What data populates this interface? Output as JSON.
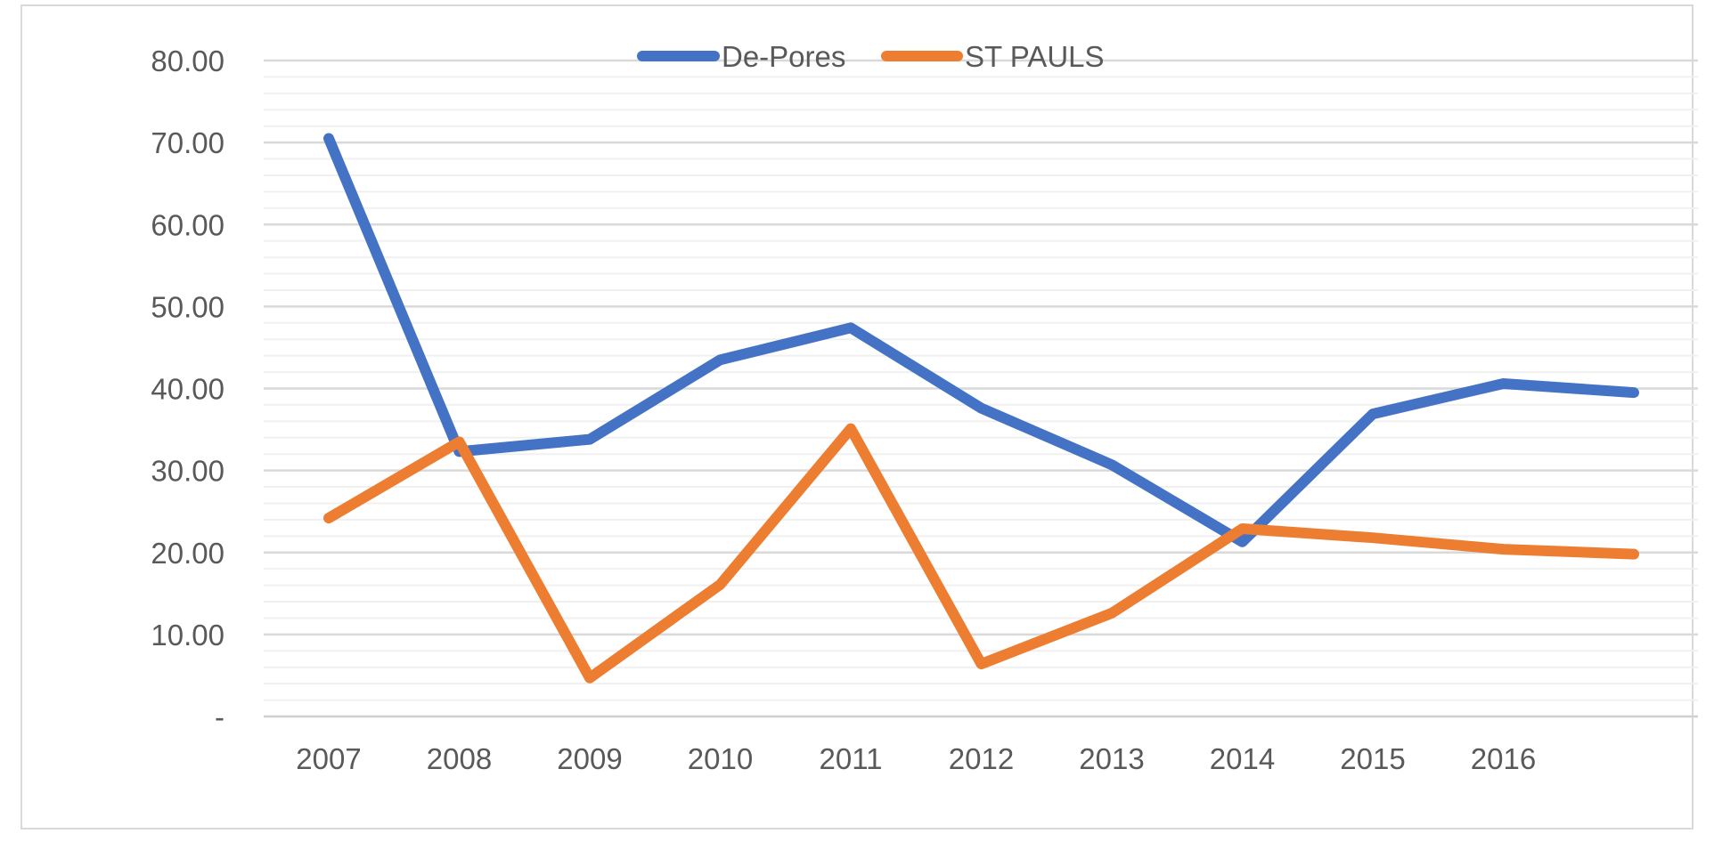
{
  "chart_data": {
    "type": "line",
    "title": "",
    "xlabel": "",
    "ylabel": "",
    "categories": [
      "2007",
      "2008",
      "2009",
      "2010",
      "2011",
      "2012",
      "2013",
      "2014",
      "2015",
      "2016",
      ""
    ],
    "y_ticks": [
      "-",
      "10.00",
      "20.00",
      "30.00",
      "40.00",
      "50.00",
      "60.00",
      "70.00",
      "80.00"
    ],
    "ylim": [
      0,
      80
    ],
    "major_step": 10,
    "minor_step": 2,
    "grid": true,
    "legend_position": "top-center",
    "series": [
      {
        "name": "De-Pores",
        "color": "#4472C4",
        "values": [
          70.5,
          32.3,
          33.8,
          43.5,
          47.4,
          37.6,
          30.7,
          21.3,
          36.9,
          40.6,
          39.5
        ]
      },
      {
        "name": "ST PAULS",
        "color": "#ED7D31",
        "values": [
          24.2,
          33.5,
          4.7,
          16.1,
          35.1,
          6.4,
          12.6,
          22.9,
          21.8,
          20.4,
          19.8
        ]
      }
    ]
  }
}
